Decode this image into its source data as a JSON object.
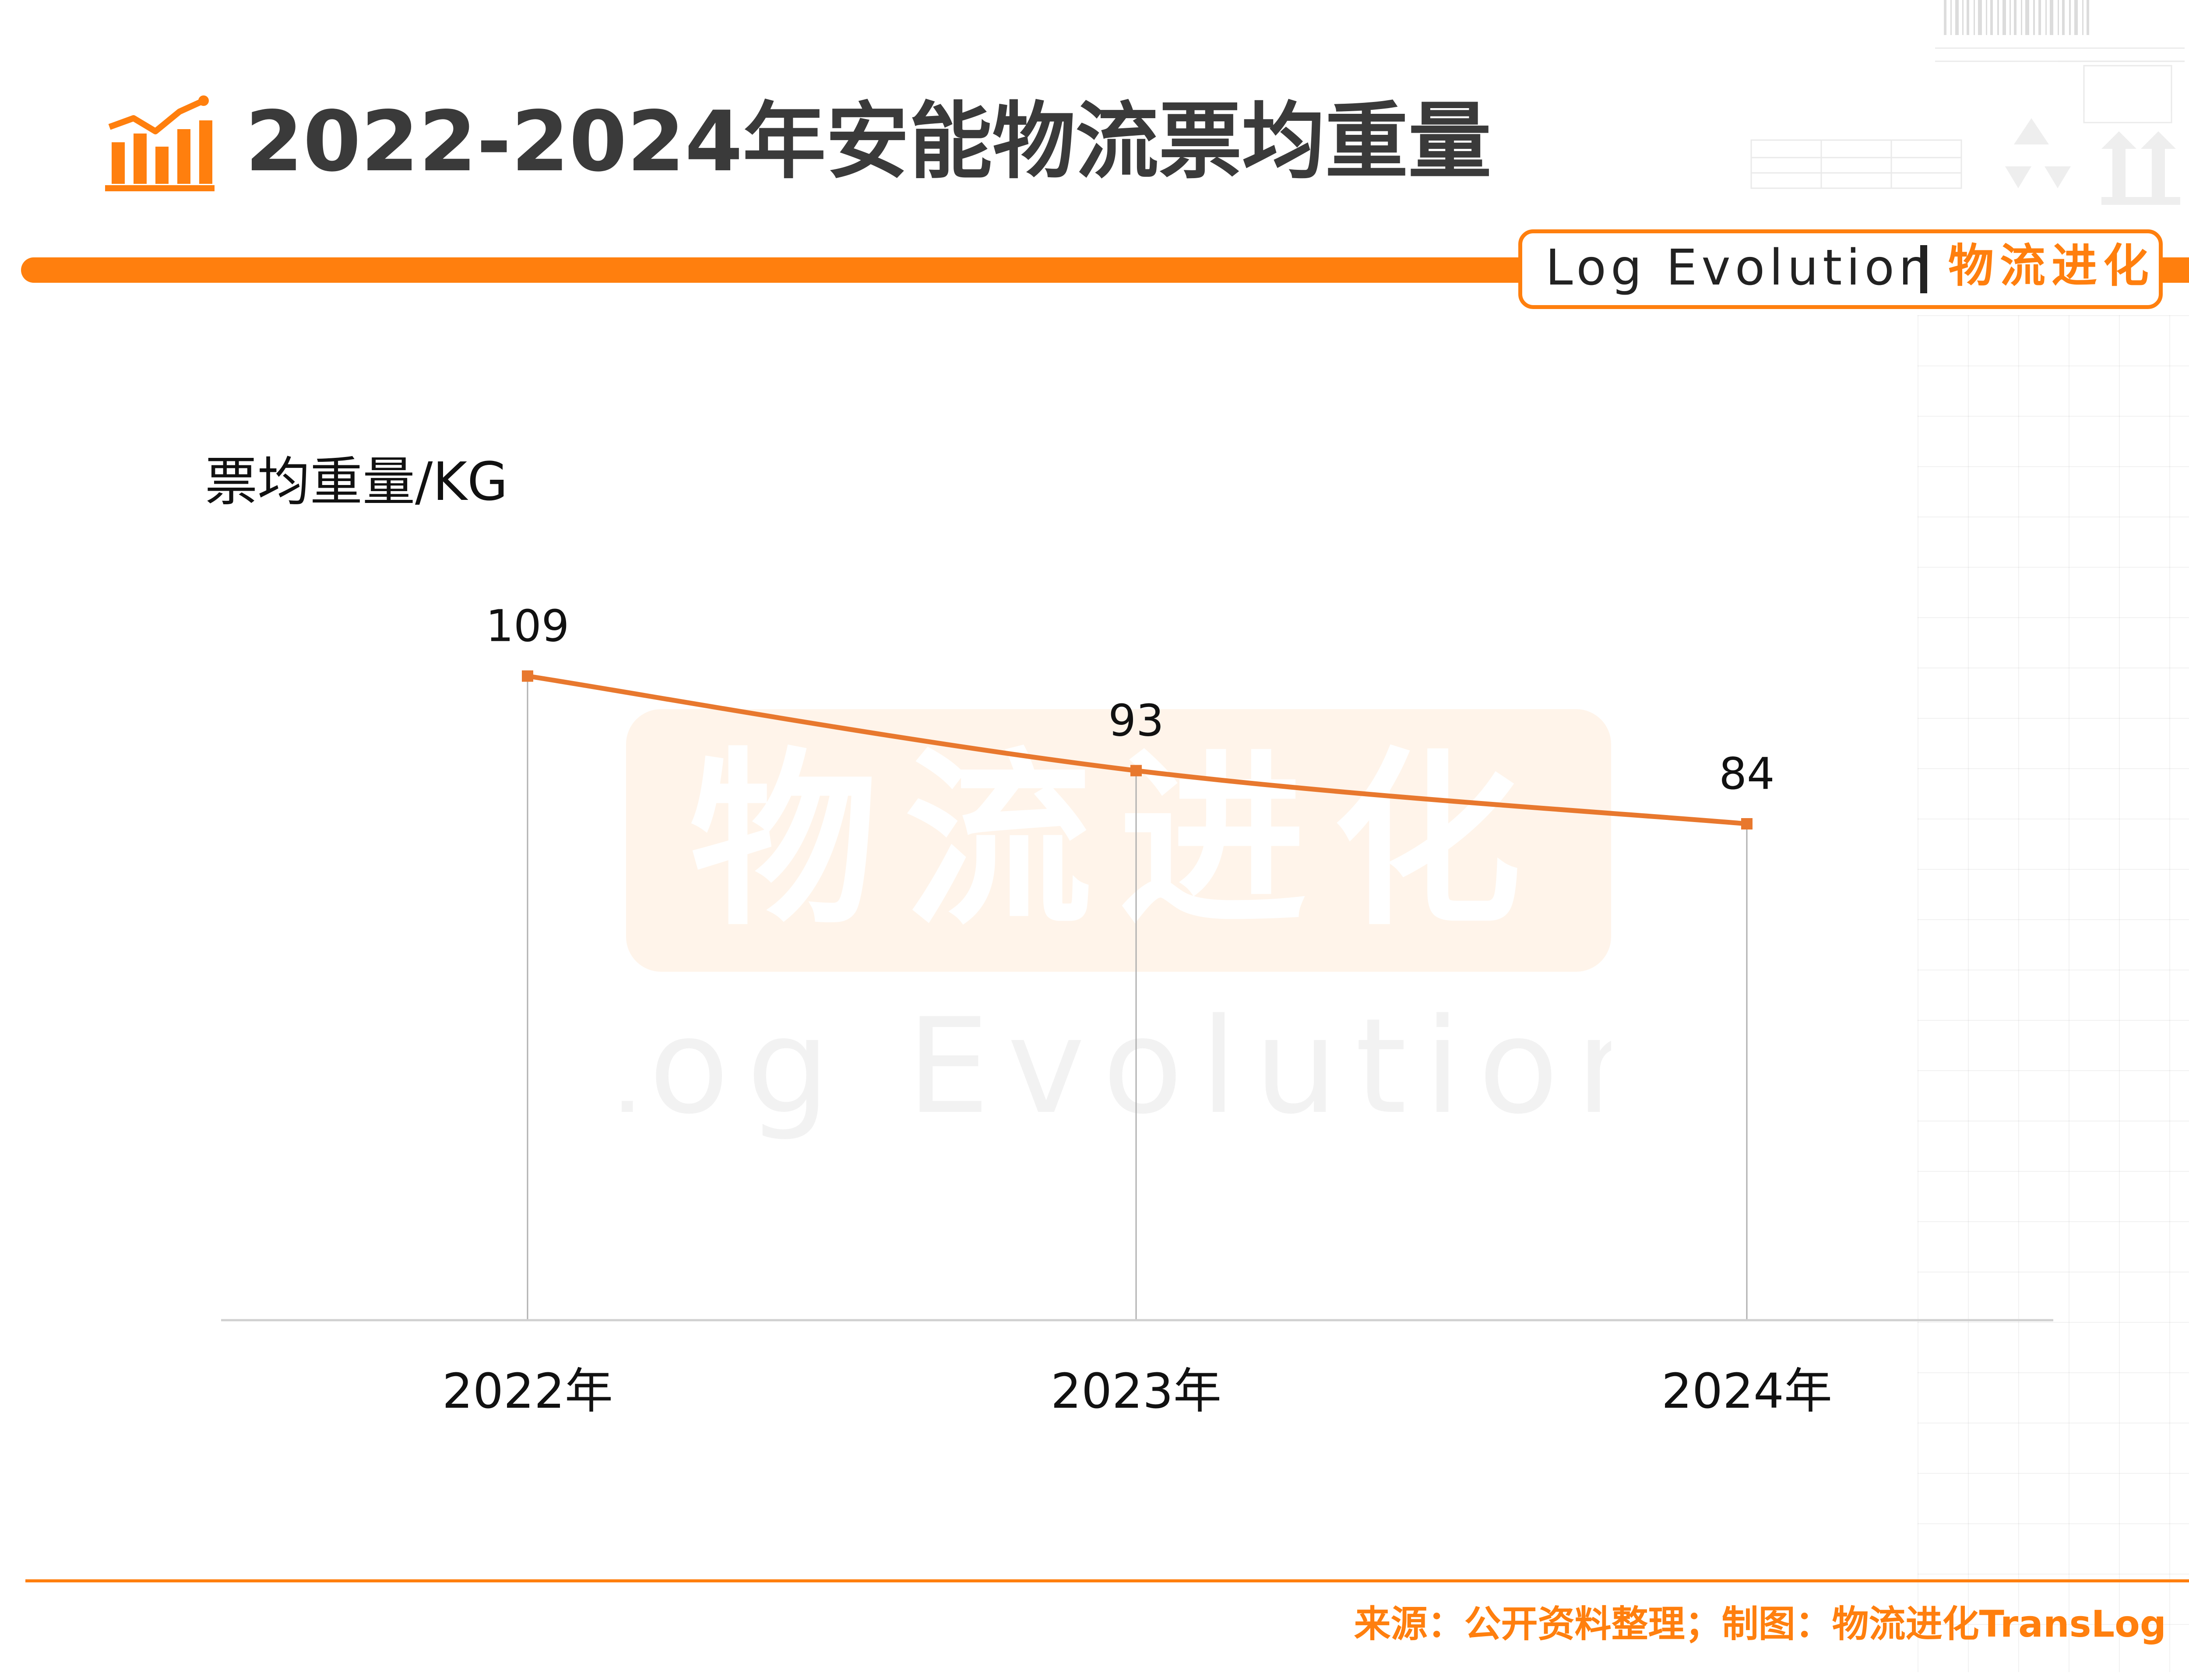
{
  "header": {
    "title": "2022-2024年安能物流票均重量",
    "icon": "bar-chart-trend-icon"
  },
  "brand": {
    "name_en": "Log Evolution",
    "separator": "|",
    "name_cn": "物流进化"
  },
  "watermark": {
    "text_cn": "物流进化",
    "text_en": "Log Evolution"
  },
  "colors": {
    "accent": "#FF7F0E",
    "line": "#E8782E",
    "title": "#3A3A3A",
    "axis": "#D0D0D0",
    "drop_line": "#B0B0B0"
  },
  "chart_data": {
    "type": "line",
    "title": "",
    "ylabel": "票均重量/KG",
    "xlabel": "",
    "categories": [
      "2022年",
      "2023年",
      "2024年"
    ],
    "series": [
      {
        "values": [
          109,
          93,
          84
        ]
      }
    ],
    "data_labels": [
      "109",
      "93",
      "84"
    ],
    "ylim": [
      0,
      130
    ],
    "grid": false,
    "legend": "none",
    "drop_lines": true
  },
  "footer": {
    "source": "来源：公开资料整理；制图：物流进化TransLog"
  }
}
